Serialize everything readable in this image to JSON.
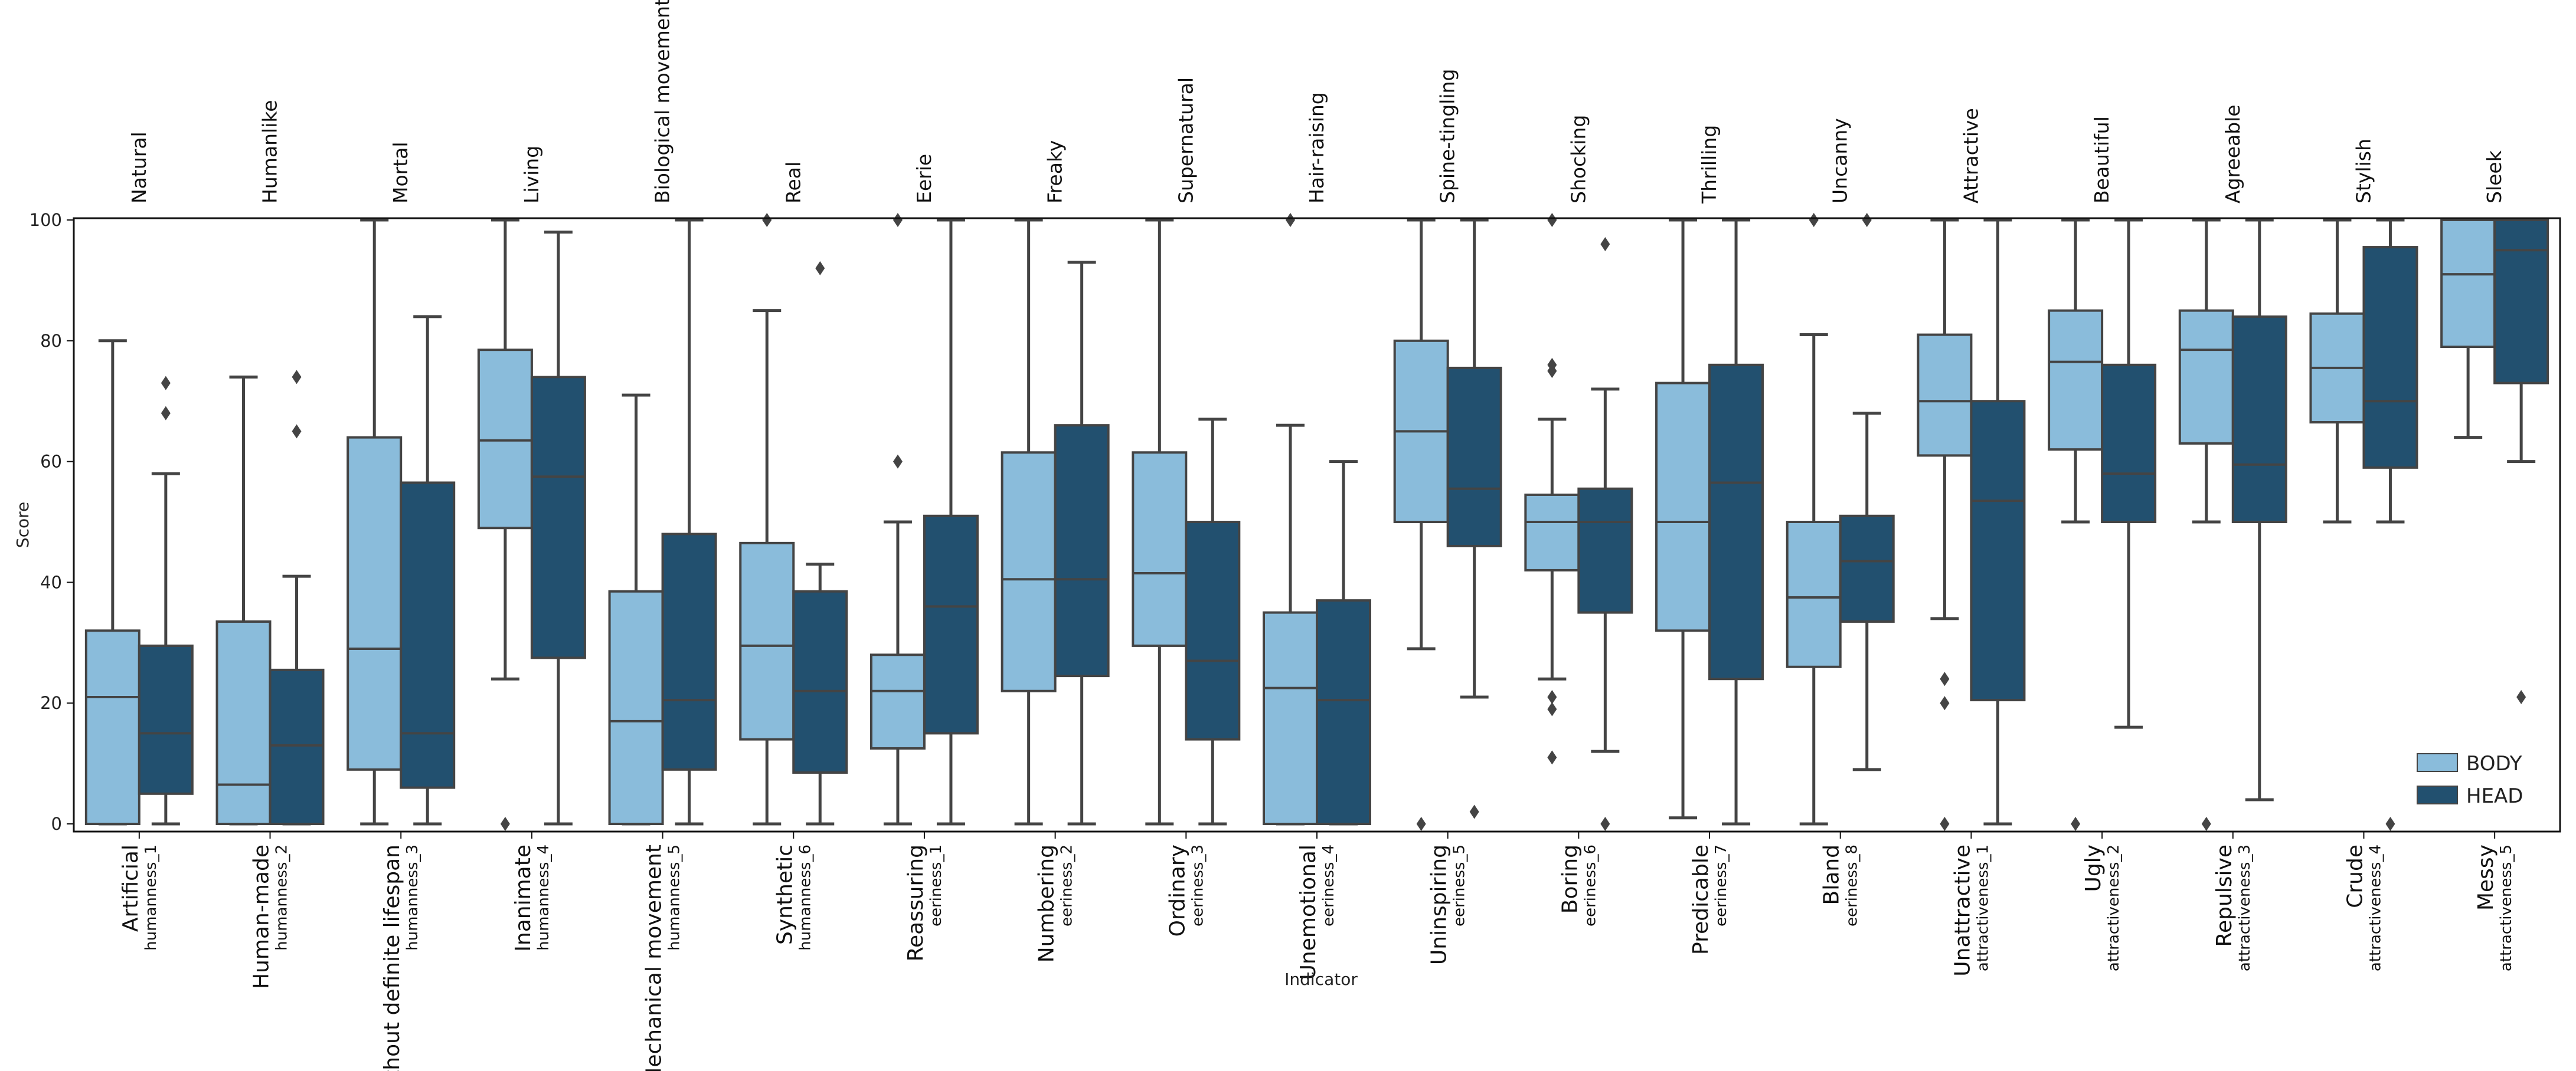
{
  "chart_data": {
    "type": "box",
    "xlabel": "Indicator",
    "ylabel": "Score",
    "ylim": [
      0,
      100
    ],
    "yticks": [
      "0",
      "20",
      "40",
      "60",
      "80",
      "100"
    ],
    "legend": {
      "position": "bottom-right",
      "entries": [
        "BODY",
        "HEAD"
      ]
    },
    "colors": {
      "BODY": "#8abcdb",
      "HEAD": "#22506f",
      "line": "#444444"
    },
    "categories": [
      {
        "top": "Natural",
        "bottom": "Artificial",
        "id": "humanness_1",
        "BODY": {
          "q1": 0,
          "median": 21,
          "q3": 32,
          "whislo": 0,
          "whishi": 80,
          "fliers": []
        },
        "HEAD": {
          "q1": 5,
          "median": 15,
          "q3": 29.5,
          "whislo": 0,
          "whishi": 58,
          "fliers": [
            68,
            73
          ]
        }
      },
      {
        "top": "Humanlike",
        "bottom": "Human-made",
        "id": "humanness_2",
        "BODY": {
          "q1": 0,
          "median": 6.5,
          "q3": 33.5,
          "whislo": 0,
          "whishi": 74,
          "fliers": []
        },
        "HEAD": {
          "q1": 0,
          "median": 13,
          "q3": 25.5,
          "whislo": 0,
          "whishi": 41,
          "fliers": [
            65,
            74
          ]
        }
      },
      {
        "top": "Mortal",
        "bottom": "Without definite lifespan",
        "id": "humanness_3",
        "BODY": {
          "q1": 9,
          "median": 29,
          "q3": 64,
          "whislo": 0,
          "whishi": 100,
          "fliers": []
        },
        "HEAD": {
          "q1": 6,
          "median": 15,
          "q3": 56.5,
          "whislo": 0,
          "whishi": 84,
          "fliers": []
        }
      },
      {
        "top": "Living",
        "bottom": "Inanimate",
        "id": "humanness_4",
        "BODY": {
          "q1": 49,
          "median": 63.5,
          "q3": 78.5,
          "whislo": 24,
          "whishi": 100,
          "fliers": [
            0
          ]
        },
        "HEAD": {
          "q1": 27.5,
          "median": 57.5,
          "q3": 74,
          "whislo": 0,
          "whishi": 98,
          "fliers": []
        }
      },
      {
        "top": "Biological movement",
        "bottom": "Mechanical movement",
        "id": "humanness_5",
        "BODY": {
          "q1": 0,
          "median": 17,
          "q3": 38.5,
          "whislo": 0,
          "whishi": 71,
          "fliers": []
        },
        "HEAD": {
          "q1": 9,
          "median": 20.5,
          "q3": 48,
          "whislo": 0,
          "whishi": 100,
          "fliers": []
        }
      },
      {
        "top": "Real",
        "bottom": "Synthetic",
        "id": "humanness_6",
        "BODY": {
          "q1": 14,
          "median": 29.5,
          "q3": 46.5,
          "whislo": 0,
          "whishi": 85,
          "fliers": [
            100
          ]
        },
        "HEAD": {
          "q1": 8.5,
          "median": 22,
          "q3": 38.5,
          "whislo": 0,
          "whishi": 43,
          "fliers": [
            92
          ]
        }
      },
      {
        "top": "Eerie",
        "bottom": "Reassuring",
        "id": "eeriness_1",
        "BODY": {
          "q1": 12.5,
          "median": 22,
          "q3": 28,
          "whislo": 0,
          "whishi": 50,
          "fliers": [
            60,
            100
          ]
        },
        "HEAD": {
          "q1": 15,
          "median": 36,
          "q3": 51,
          "whislo": 0,
          "whishi": 100,
          "fliers": []
        }
      },
      {
        "top": "Freaky",
        "bottom": "Numbering",
        "id": "eeriness_2",
        "BODY": {
          "q1": 22,
          "median": 40.5,
          "q3": 61.5,
          "whislo": 0,
          "whishi": 100,
          "fliers": []
        },
        "HEAD": {
          "q1": 24.5,
          "median": 40.5,
          "q3": 66,
          "whislo": 0,
          "whishi": 93,
          "fliers": []
        }
      },
      {
        "top": "Supernatural",
        "bottom": "Ordinary",
        "id": "eeriness_3",
        "BODY": {
          "q1": 29.5,
          "median": 41.5,
          "q3": 61.5,
          "whislo": 0,
          "whishi": 100,
          "fliers": []
        },
        "HEAD": {
          "q1": 14,
          "median": 27,
          "q3": 50,
          "whislo": 0,
          "whishi": 67,
          "fliers": []
        }
      },
      {
        "top": "Hair-raising",
        "bottom": "Unemotional",
        "id": "eeriness_4",
        "BODY": {
          "q1": 0,
          "median": 22.5,
          "q3": 35,
          "whislo": 0,
          "whishi": 66,
          "fliers": [
            100
          ]
        },
        "HEAD": {
          "q1": 0,
          "median": 20.5,
          "q3": 37,
          "whislo": 0,
          "whishi": 60,
          "fliers": []
        }
      },
      {
        "top": "Spine-tingling",
        "bottom": "Uninspiring",
        "id": "eeriness_5",
        "BODY": {
          "q1": 50,
          "median": 65,
          "q3": 80,
          "whislo": 29,
          "whishi": 100,
          "fliers": [
            0
          ]
        },
        "HEAD": {
          "q1": 46,
          "median": 55.5,
          "q3": 75.5,
          "whislo": 21,
          "whishi": 100,
          "fliers": [
            2
          ]
        }
      },
      {
        "top": "Shocking",
        "bottom": "Boring",
        "id": "eeriness_6",
        "BODY": {
          "q1": 42,
          "median": 50,
          "q3": 54.5,
          "whislo": 24,
          "whishi": 67,
          "fliers": [
            11,
            19,
            21,
            75,
            76,
            100
          ]
        },
        "HEAD": {
          "q1": 35,
          "median": 50,
          "q3": 55.5,
          "whislo": 12,
          "whishi": 72,
          "fliers": [
            0,
            96
          ]
        }
      },
      {
        "top": "Thrilling",
        "bottom": "Predicable",
        "id": "eeriness_7",
        "BODY": {
          "q1": 32,
          "median": 50,
          "q3": 73,
          "whislo": 1,
          "whishi": 100,
          "fliers": []
        },
        "HEAD": {
          "q1": 24,
          "median": 56.5,
          "q3": 76,
          "whislo": 0,
          "whishi": 100,
          "fliers": []
        }
      },
      {
        "top": "Uncanny",
        "bottom": "Bland",
        "id": "eeriness_8",
        "BODY": {
          "q1": 26,
          "median": 37.5,
          "q3": 50,
          "whislo": 0,
          "whishi": 81,
          "fliers": [
            100
          ]
        },
        "HEAD": {
          "q1": 33.5,
          "median": 43.5,
          "q3": 51,
          "whislo": 9,
          "whishi": 68,
          "fliers": [
            100
          ]
        }
      },
      {
        "top": "Attractive",
        "bottom": "Unattractive",
        "id": "attractiveness_1",
        "BODY": {
          "q1": 61,
          "median": 70,
          "q3": 81,
          "whislo": 34,
          "whishi": 100,
          "fliers": [
            0,
            20,
            24
          ]
        },
        "HEAD": {
          "q1": 20.5,
          "median": 53.5,
          "q3": 70,
          "whislo": 0,
          "whishi": 100,
          "fliers": []
        }
      },
      {
        "top": "Beautiful",
        "bottom": "Ugly",
        "id": "attractiveness_2",
        "BODY": {
          "q1": 62,
          "median": 76.5,
          "q3": 85,
          "whislo": 50,
          "whishi": 100,
          "fliers": [
            0
          ]
        },
        "HEAD": {
          "q1": 50,
          "median": 58,
          "q3": 76,
          "whislo": 16,
          "whishi": 100,
          "fliers": []
        }
      },
      {
        "top": "Agreeable",
        "bottom": "Repulsive",
        "id": "attractiveness_3",
        "BODY": {
          "q1": 63,
          "median": 78.5,
          "q3": 85,
          "whislo": 50,
          "whishi": 100,
          "fliers": [
            0
          ]
        },
        "HEAD": {
          "q1": 50,
          "median": 59.5,
          "q3": 84,
          "whislo": 4,
          "whishi": 100,
          "fliers": []
        }
      },
      {
        "top": "Stylish",
        "bottom": "Crude",
        "id": "attractiveness_4",
        "BODY": {
          "q1": 66.5,
          "median": 75.5,
          "q3": 84.5,
          "whislo": 50,
          "whishi": 100,
          "fliers": []
        },
        "HEAD": {
          "q1": 59,
          "median": 70,
          "q3": 95.5,
          "whislo": 50,
          "whishi": 100,
          "fliers": [
            0
          ]
        }
      },
      {
        "top": "Sleek",
        "bottom": "Messy",
        "id": "attractiveness_5",
        "BODY": {
          "q1": 79,
          "median": 91,
          "q3": 100,
          "whislo": 64,
          "whishi": 100,
          "fliers": []
        },
        "HEAD": {
          "q1": 73,
          "median": 95,
          "q3": 100,
          "whislo": 60,
          "whishi": 100,
          "fliers": [
            21
          ]
        }
      }
    ]
  }
}
